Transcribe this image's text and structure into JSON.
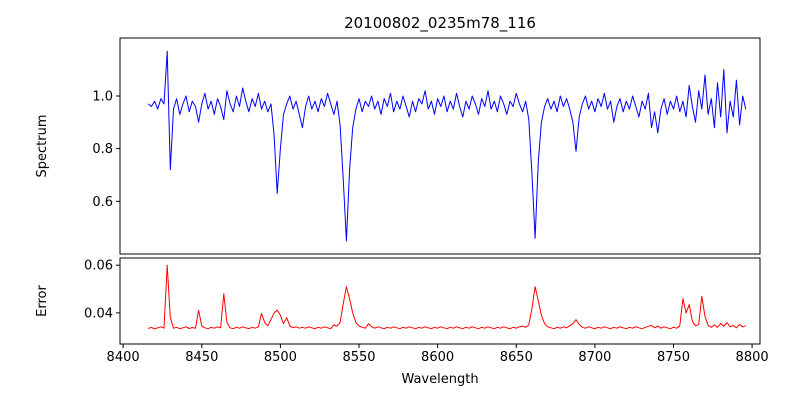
{
  "chart_data": {
    "type": "line",
    "title": "20100802_0235m78_116",
    "xlabel": "Wavelength",
    "grid": false,
    "legend": "none",
    "xlim": [
      8398,
      8805
    ],
    "xticks": [
      8400,
      8450,
      8500,
      8550,
      8600,
      8650,
      8700,
      8750,
      8800
    ],
    "xtick_labels": [
      "8400",
      "8450",
      "8500",
      "8550",
      "8600",
      "8650",
      "8700",
      "8750",
      "8800"
    ],
    "panels": [
      {
        "name": "spectrum",
        "ylabel": "Spectrum",
        "ylim": [
          0.4,
          1.22
        ],
        "yticks": [
          0.6,
          0.8,
          1.0
        ],
        "ytick_labels": [
          "0.6",
          "0.8",
          "1.0"
        ],
        "show_xticks": false,
        "series": {
          "name": "spectrum",
          "color": "#0000ff",
          "x_start": 8416,
          "x_step": 2,
          "values": [
            0.97,
            0.96,
            0.98,
            0.95,
            0.99,
            0.97,
            1.17,
            0.72,
            0.95,
            0.99,
            0.93,
            0.97,
            1.0,
            0.94,
            0.98,
            0.96,
            0.9,
            0.97,
            1.01,
            0.95,
            0.98,
            0.93,
            0.99,
            0.96,
            0.91,
            1.02,
            0.97,
            0.94,
            1.0,
            0.96,
            1.03,
            0.98,
            0.94,
            0.99,
            0.96,
            1.01,
            0.95,
            0.98,
            0.94,
            0.97,
            0.85,
            0.63,
            0.8,
            0.93,
            0.97,
            1.0,
            0.95,
            0.98,
            0.93,
            0.88,
            0.96,
            1.0,
            0.95,
            0.98,
            0.94,
            0.99,
            0.96,
            1.01,
            0.97,
            0.93,
            0.98,
            0.89,
            0.68,
            0.45,
            0.72,
            0.88,
            0.95,
            0.99,
            0.94,
            0.98,
            0.96,
            1.0,
            0.95,
            0.98,
            0.93,
            0.99,
            0.96,
            1.01,
            0.94,
            0.98,
            0.95,
            1.0,
            0.96,
            0.92,
            0.98,
            0.94,
            0.99,
            0.97,
            1.02,
            0.95,
            0.98,
            0.93,
            0.99,
            0.96,
            1.0,
            0.94,
            0.98,
            0.95,
            1.01,
            0.96,
            0.92,
            0.98,
            0.95,
            1.0,
            0.97,
            0.93,
            0.99,
            0.96,
            1.02,
            0.95,
            0.98,
            0.94,
            1.0,
            0.97,
            0.93,
            0.98,
            0.96,
            1.01,
            0.97,
            0.94,
            0.98,
            0.91,
            0.7,
            0.46,
            0.75,
            0.9,
            0.96,
            0.99,
            0.95,
            0.98,
            0.94,
            1.0,
            0.96,
            0.99,
            0.95,
            0.9,
            0.79,
            0.92,
            0.97,
            1.0,
            0.95,
            0.98,
            0.94,
            0.99,
            0.96,
            1.01,
            0.95,
            0.98,
            0.9,
            0.96,
            0.99,
            0.94,
            0.98,
            0.95,
            1.0,
            0.96,
            0.92,
            0.98,
            0.95,
            1.01,
            0.88,
            0.94,
            0.86,
            0.95,
            0.99,
            0.93,
            0.98,
            0.95,
            1.0,
            0.94,
            0.98,
            0.92,
            1.04,
            0.96,
            0.9,
            1.02,
            0.95,
            1.08,
            0.93,
            0.99,
            0.88,
            1.05,
            0.92,
            1.1,
            0.86,
            0.98,
            0.92,
            1.06,
            0.89,
            1.0,
            0.95
          ]
        }
      },
      {
        "name": "error",
        "ylabel": "Error",
        "ylim": [
          0.027,
          0.063
        ],
        "yticks": [
          0.04,
          0.06
        ],
        "ytick_labels": [
          "0.04",
          "0.06"
        ],
        "show_xticks": true,
        "series": {
          "name": "error",
          "color": "#ff0000",
          "x_start": 8416,
          "x_step": 2,
          "values": [
            0.0335,
            0.034,
            0.0333,
            0.0338,
            0.0342,
            0.0336,
            0.06,
            0.038,
            0.0336,
            0.034,
            0.0334,
            0.0338,
            0.0342,
            0.0335,
            0.0339,
            0.0336,
            0.0412,
            0.0345,
            0.0338,
            0.0334,
            0.034,
            0.0336,
            0.0342,
            0.0338,
            0.048,
            0.036,
            0.0338,
            0.0334,
            0.034,
            0.0336,
            0.0342,
            0.0338,
            0.0334,
            0.034,
            0.0336,
            0.0342,
            0.0398,
            0.036,
            0.0346,
            0.0372,
            0.04,
            0.0412,
            0.039,
            0.0355,
            0.038,
            0.0346,
            0.0338,
            0.0342,
            0.0336,
            0.034,
            0.0336,
            0.0342,
            0.0338,
            0.0334,
            0.034,
            0.0336,
            0.0342,
            0.0338,
            0.0334,
            0.035,
            0.0345,
            0.036,
            0.044,
            0.051,
            0.046,
            0.04,
            0.036,
            0.0345,
            0.034,
            0.0336,
            0.0355,
            0.0342,
            0.0336,
            0.0342,
            0.0338,
            0.0334,
            0.034,
            0.0336,
            0.0342,
            0.0338,
            0.0334,
            0.034,
            0.0336,
            0.0342,
            0.0338,
            0.0334,
            0.034,
            0.0336,
            0.0342,
            0.0338,
            0.0334,
            0.034,
            0.0336,
            0.0342,
            0.0338,
            0.0334,
            0.034,
            0.0336,
            0.0342,
            0.0338,
            0.0334,
            0.034,
            0.0336,
            0.0342,
            0.0338,
            0.0334,
            0.034,
            0.0336,
            0.0342,
            0.0338,
            0.0334,
            0.034,
            0.0336,
            0.0342,
            0.0338,
            0.0334,
            0.034,
            0.0336,
            0.0342,
            0.0345,
            0.034,
            0.035,
            0.042,
            0.051,
            0.045,
            0.039,
            0.0355,
            0.0342,
            0.0338,
            0.0334,
            0.034,
            0.0336,
            0.0342,
            0.0338,
            0.0346,
            0.0355,
            0.0372,
            0.0352,
            0.034,
            0.0336,
            0.0342,
            0.0338,
            0.0334,
            0.034,
            0.0336,
            0.0342,
            0.0338,
            0.0334,
            0.034,
            0.0336,
            0.0342,
            0.0338,
            0.0334,
            0.034,
            0.0336,
            0.0342,
            0.0338,
            0.0334,
            0.034,
            0.0344,
            0.0348,
            0.0338,
            0.0345,
            0.0336,
            0.0342,
            0.0338,
            0.0334,
            0.034,
            0.0336,
            0.0346,
            0.046,
            0.04,
            0.0435,
            0.0365,
            0.0346,
            0.0352,
            0.047,
            0.0385,
            0.0348,
            0.034,
            0.035,
            0.034,
            0.0356,
            0.0344,
            0.036,
            0.0342,
            0.0348,
            0.0338,
            0.0352,
            0.0342,
            0.0346
          ]
        }
      }
    ]
  }
}
